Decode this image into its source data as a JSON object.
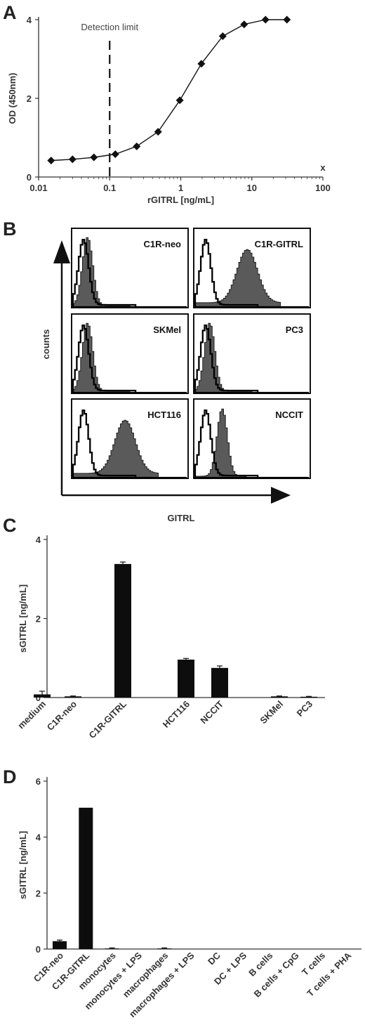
{
  "panels": {
    "a": "A",
    "b": "B",
    "c": "C",
    "d": "D"
  },
  "chart_data": [
    {
      "panel": "A",
      "type": "line",
      "xlabel": "rGITRL [ng/mL]",
      "ylabel": "OD (450nm)",
      "xscale": "log",
      "xlim": [
        0.01,
        100
      ],
      "ylim": [
        0,
        4
      ],
      "xticks": [
        0.01,
        0.1,
        1,
        10,
        100
      ],
      "xtick_labels": [
        "0.01",
        "0.1",
        "1",
        "10",
        "100"
      ],
      "yticks": [
        0,
        2,
        4
      ],
      "ytick_labels": [
        "0",
        "2",
        "4"
      ],
      "x": [
        0.015,
        0.03,
        0.06,
        0.12,
        0.24,
        0.48,
        0.97,
        1.95,
        3.9,
        7.8,
        15.6,
        31.2
      ],
      "y": [
        0.42,
        0.45,
        0.5,
        0.58,
        0.78,
        1.15,
        1.95,
        2.88,
        3.58,
        3.88,
        4.0,
        4.0
      ],
      "annotations": [
        {
          "text": "Detection limit",
          "x": 0.1
        }
      ],
      "corner_mark": "x",
      "marker": "diamond"
    },
    {
      "panel": "B",
      "type": "histogram-grid",
      "xlabel": "GITRL",
      "ylabel": "counts",
      "panels": [
        {
          "label": "C1R-neo",
          "shift": "none"
        },
        {
          "label": "C1R-GITRL",
          "shift": "strong"
        },
        {
          "label": "SKMel",
          "shift": "none"
        },
        {
          "label": "PC3",
          "shift": "none"
        },
        {
          "label": "HCT116",
          "shift": "strong"
        },
        {
          "label": "NCCIT",
          "shift": "moderate"
        }
      ],
      "legend_note": "open histogram = control, filled histogram = GITRL stain"
    },
    {
      "panel": "C",
      "type": "bar",
      "ylabel": "sGITRL [ng/mL]",
      "ylim": [
        0,
        4
      ],
      "yticks": [
        0,
        2,
        4
      ],
      "ytick_labels": [
        "0",
        "2",
        "4"
      ],
      "categories": [
        "medium",
        "C1R-neo",
        "C1R-GITRL",
        "HCT116",
        "NCCIT",
        "SKMel",
        "PC3"
      ],
      "groups": [
        0,
        0,
        0,
        1,
        1,
        2,
        2
      ],
      "values": [
        0.08,
        0.03,
        3.38,
        0.96,
        0.75,
        0.03,
        0.02
      ],
      "errors": [
        0.08,
        0.01,
        0.05,
        0.03,
        0.05,
        0.01,
        0.01
      ]
    },
    {
      "panel": "D",
      "type": "bar",
      "ylabel": "sGITRL [ng/mL]",
      "ylim": [
        0,
        6
      ],
      "yticks": [
        0,
        2,
        4,
        6
      ],
      "ytick_labels": [
        "0",
        "2",
        "4",
        "6"
      ],
      "categories": [
        "C1R-neo",
        "C1R-GITRL",
        "monocytes",
        "monocytes + LPS",
        "macrophages",
        "macrophages + LPS",
        "DC",
        "DC + LPS",
        "B cells",
        "B cells + CpG",
        "T cells",
        "T cells + PHA"
      ],
      "values": [
        0.28,
        5.05,
        0.02,
        0,
        0.02,
        0,
        0,
        0,
        0,
        0,
        0,
        0
      ],
      "errors": [
        0.04,
        0,
        0.02,
        0,
        0.02,
        0,
        0,
        0,
        0,
        0,
        0,
        0
      ]
    }
  ]
}
